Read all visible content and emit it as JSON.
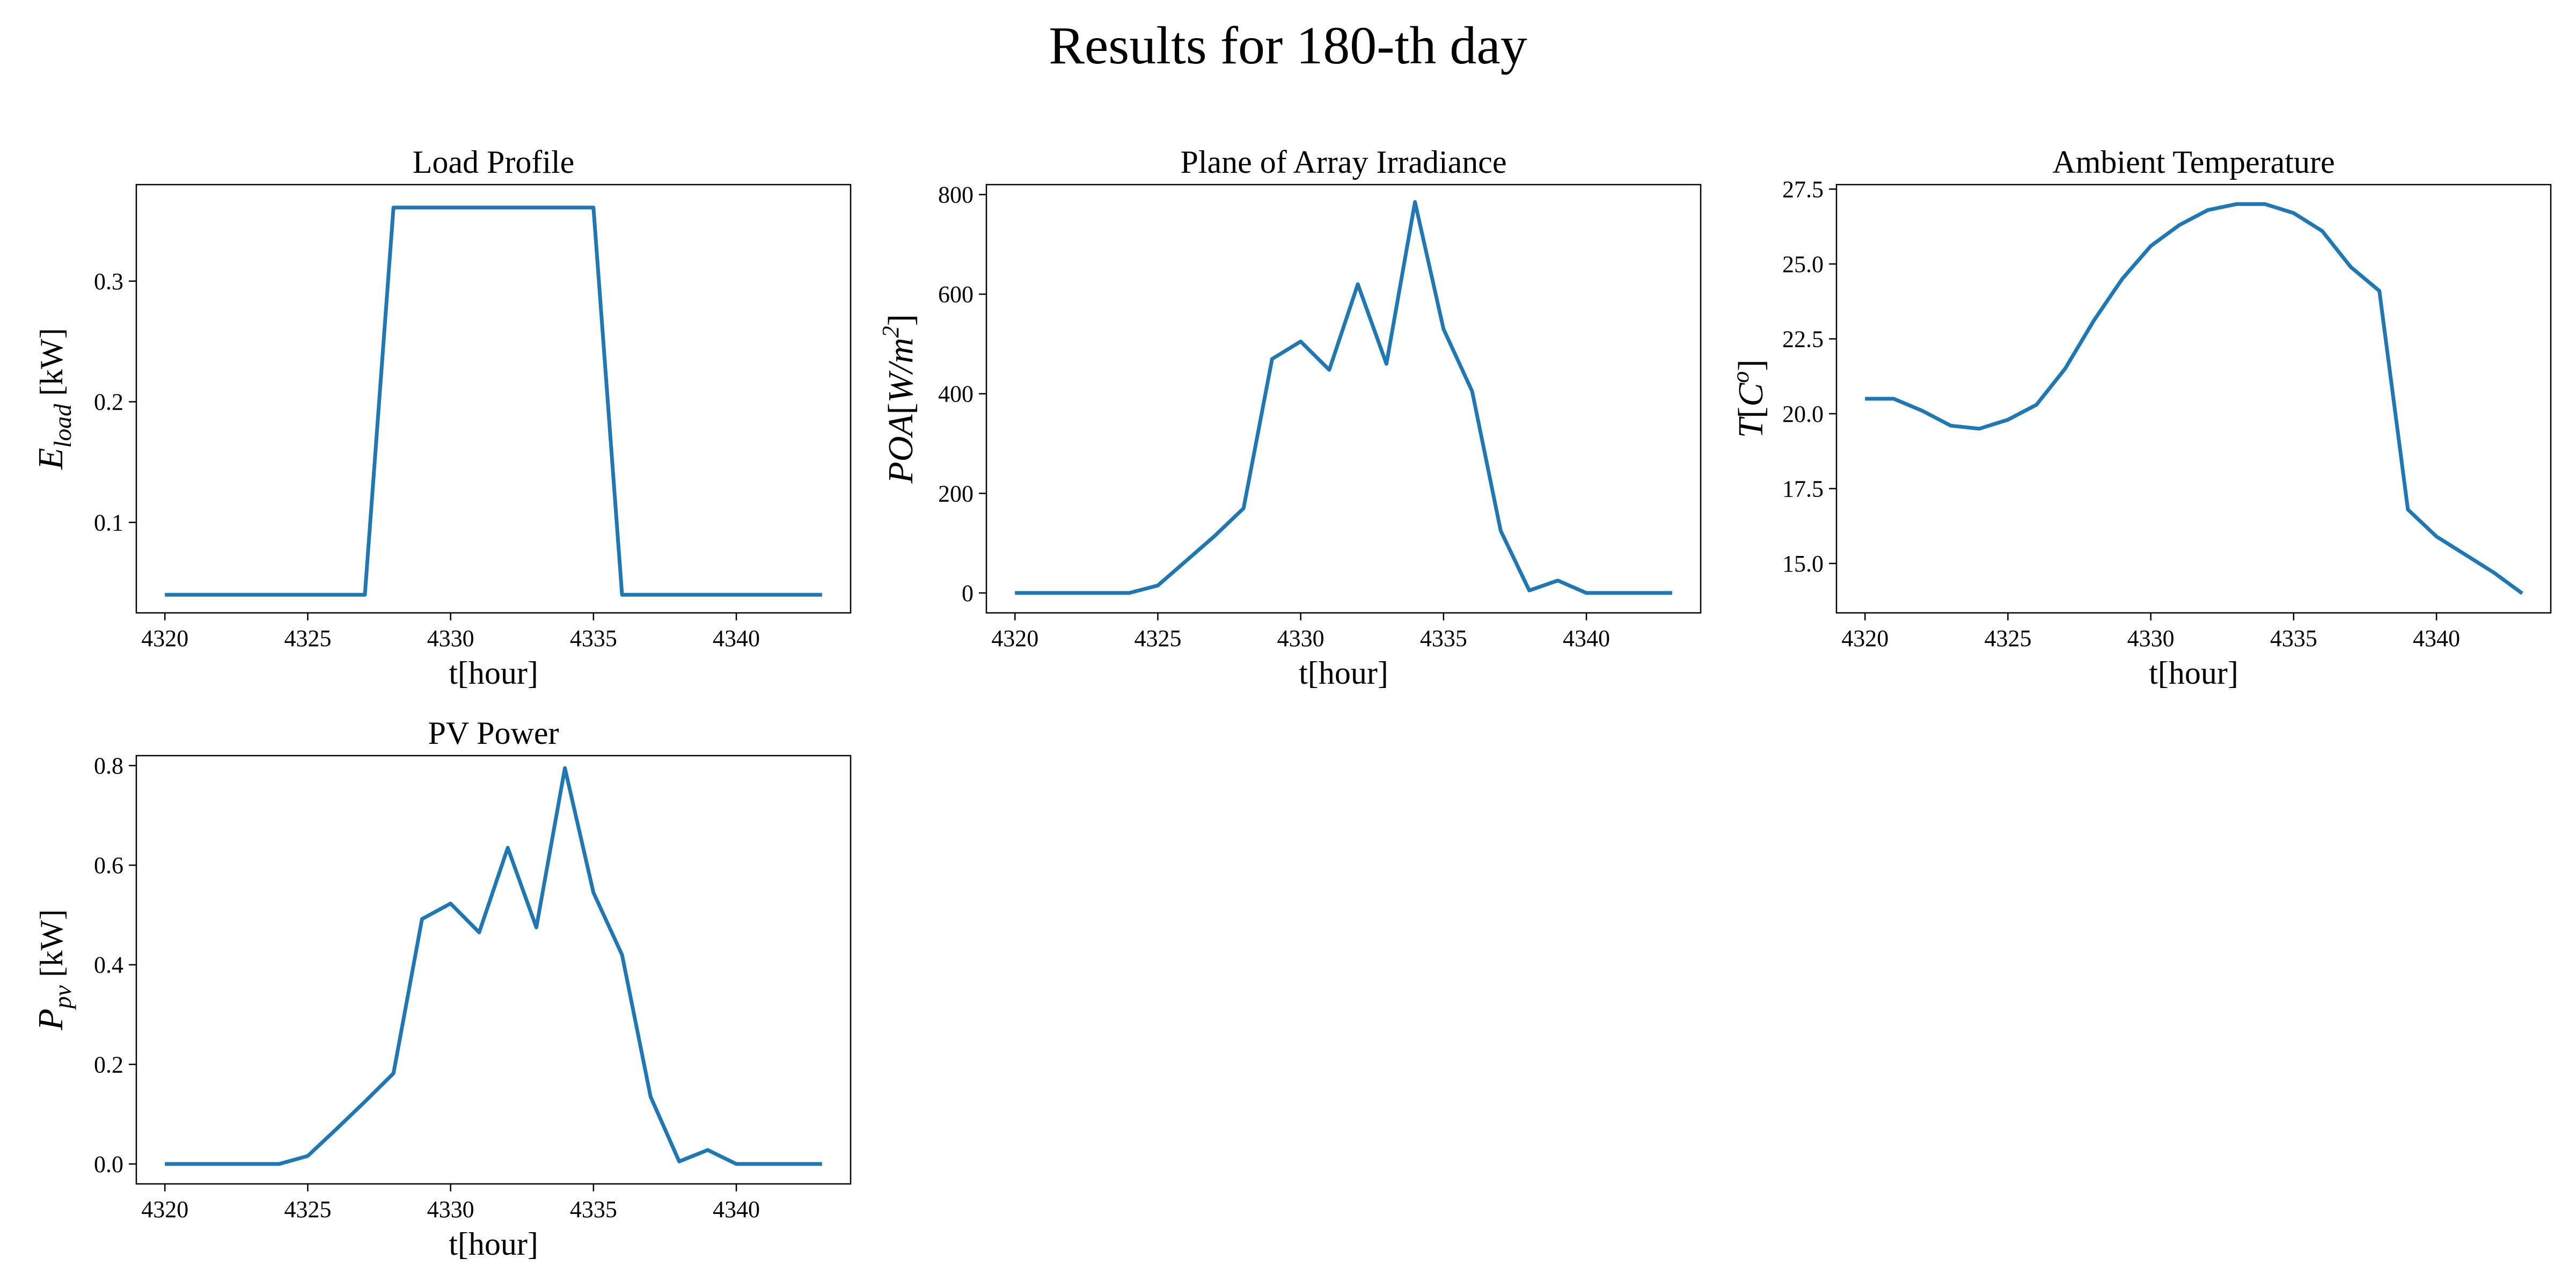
{
  "title": "Results for 180-th day",
  "colors": {
    "line": "#1f77b4",
    "axes": "#000000",
    "background": "#ffffff"
  },
  "chart_data": [
    {
      "type": "line",
      "title": "Load Profile",
      "xlabel": "t[hour]",
      "ylabel": {
        "symbol": "E",
        "sub": "load",
        "unit": " [kW]"
      },
      "xlim": [
        4319,
        4344
      ],
      "ylim": [
        0.025,
        0.38
      ],
      "xticks": [
        4320,
        4325,
        4330,
        4335,
        4340
      ],
      "yticks": [
        0.1,
        0.2,
        0.3
      ],
      "yticks_text": [
        "0.1",
        "0.2",
        "0.3"
      ],
      "grid": false,
      "series": [
        {
          "x": [
            4320,
            4321,
            4322,
            4323,
            4324,
            4325,
            4326,
            4327,
            4328,
            4329,
            4330,
            4331,
            4332,
            4333,
            4334,
            4335,
            4336,
            4337,
            4338,
            4339,
            4340,
            4341,
            4342,
            4343
          ],
          "y": [
            0.04,
            0.04,
            0.04,
            0.04,
            0.04,
            0.04,
            0.04,
            0.04,
            0.361,
            0.361,
            0.361,
            0.361,
            0.361,
            0.361,
            0.361,
            0.361,
            0.04,
            0.04,
            0.04,
            0.04,
            0.04,
            0.04,
            0.04,
            0.04
          ]
        }
      ]
    },
    {
      "type": "line",
      "title": "Plane of Array Irradiance",
      "xlabel": "t[hour]",
      "ylabel": {
        "symbol": "POA",
        "bracket_unit": "W/m",
        "sup": "2"
      },
      "xlim": [
        4319,
        4344
      ],
      "ylim": [
        -40,
        820
      ],
      "xticks": [
        4320,
        4325,
        4330,
        4335,
        4340
      ],
      "yticks": [
        0,
        200,
        400,
        600,
        800
      ],
      "yticks_text": [
        "0",
        "200",
        "400",
        "600",
        "800"
      ],
      "grid": false,
      "series": [
        {
          "x": [
            4320,
            4321,
            4322,
            4323,
            4324,
            4325,
            4326,
            4327,
            4328,
            4329,
            4330,
            4331,
            4332,
            4333,
            4334,
            4335,
            4336,
            4337,
            4338,
            4339,
            4340,
            4341,
            4342,
            4343
          ],
          "y": [
            0,
            0,
            0,
            0,
            0,
            15,
            65,
            115,
            170,
            470,
            505,
            448,
            620,
            460,
            785,
            530,
            405,
            125,
            5,
            25,
            0,
            0,
            0,
            0
          ]
        }
      ]
    },
    {
      "type": "line",
      "title": "Ambient Temperature",
      "xlabel": "t[hour]",
      "ylabel": {
        "symbol": "T",
        "bracket_unit": "C",
        "sup": "o"
      },
      "xlim": [
        4319,
        4344
      ],
      "ylim": [
        13.35,
        27.65
      ],
      "xticks": [
        4320,
        4325,
        4330,
        4335,
        4340
      ],
      "yticks": [
        15.0,
        17.5,
        20.0,
        22.5,
        25.0,
        27.5
      ],
      "yticks_text": [
        "15.0",
        "17.5",
        "20.0",
        "22.5",
        "25.0",
        "27.5"
      ],
      "grid": false,
      "series": [
        {
          "x": [
            4320,
            4321,
            4322,
            4323,
            4324,
            4325,
            4326,
            4327,
            4328,
            4329,
            4330,
            4331,
            4332,
            4333,
            4334,
            4335,
            4336,
            4337,
            4338,
            4339,
            4340,
            4341,
            4342,
            4343
          ],
          "y": [
            20.5,
            20.5,
            20.1,
            19.6,
            19.5,
            19.8,
            20.3,
            21.5,
            23.1,
            24.5,
            25.6,
            26.3,
            26.8,
            27.0,
            27.0,
            26.7,
            26.1,
            24.9,
            24.1,
            16.8,
            15.9,
            15.3,
            14.7,
            14.0
          ]
        }
      ]
    },
    {
      "type": "line",
      "title": "PV Power",
      "xlabel": "t[hour]",
      "ylabel": {
        "symbol": "P",
        "sub": "pv",
        "unit": " [kW]"
      },
      "xlim": [
        4319,
        4344
      ],
      "ylim": [
        -0.04,
        0.82
      ],
      "xticks": [
        4320,
        4325,
        4330,
        4335,
        4340
      ],
      "yticks": [
        0.0,
        0.2,
        0.4,
        0.6,
        0.8
      ],
      "yticks_text": [
        "0.0",
        "0.2",
        "0.4",
        "0.6",
        "0.8"
      ],
      "grid": false,
      "series": [
        {
          "x": [
            4320,
            4321,
            4322,
            4323,
            4324,
            4325,
            4326,
            4327,
            4328,
            4329,
            4330,
            4331,
            4332,
            4333,
            4334,
            4335,
            4336,
            4337,
            4338,
            4339,
            4340,
            4341,
            4342,
            4343
          ],
          "y": [
            0,
            0,
            0,
            0,
            0,
            0.016,
            0.07,
            0.125,
            0.182,
            0.492,
            0.523,
            0.465,
            0.635,
            0.475,
            0.795,
            0.545,
            0.42,
            0.135,
            0.005,
            0.028,
            0,
            0,
            0,
            0
          ]
        }
      ]
    }
  ]
}
